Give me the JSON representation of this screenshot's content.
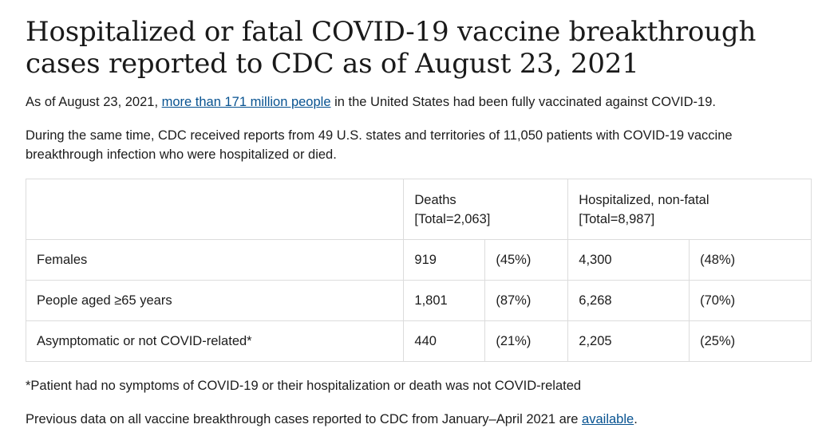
{
  "title": "Hospitalized or fatal COVID-19 vaccine breakthrough cases reported to CDC as of August 23, 2021",
  "intro": {
    "before_link": "As of August 23, 2021, ",
    "link_text": "more than 171 million people",
    "after_link": " in the United States had been fully vaccinated against COVID-19."
  },
  "summary": "During the same time, CDC received reports from 49 U.S. states and territories of 11,050 patients with COVID-19 vaccine breakthrough infection who were hospitalized or died.",
  "table": {
    "headers": {
      "deaths_line1": "Deaths",
      "deaths_line2": "[Total=2,063]",
      "hosp_line1": "Hospitalized, non-fatal",
      "hosp_line2": "[Total=8,987]"
    },
    "rows": [
      {
        "label": "Females",
        "deaths": "919",
        "deaths_pct": "(45%)",
        "hosp": "4,300",
        "hosp_pct": "(48%)"
      },
      {
        "label": "People aged ≥65 years",
        "deaths": "1,801",
        "deaths_pct": "(87%)",
        "hosp": "6,268",
        "hosp_pct": "(70%)"
      },
      {
        "label": "Asymptomatic or not COVID-related*",
        "deaths": "440",
        "deaths_pct": "(21%)",
        "hosp": "2,205",
        "hosp_pct": "(25%)"
      }
    ]
  },
  "footnote": "*Patient had no symptoms of COVID-19 or their hospitalization or death was not COVID-related",
  "previous": {
    "before_link": "Previous data on all vaccine breakthrough cases reported to CDC from January–April 2021 are ",
    "link_text": "available",
    "after_link": "."
  },
  "colors": {
    "link": "#075290",
    "border": "#dcdcdc",
    "text": "#1c1c1c"
  }
}
